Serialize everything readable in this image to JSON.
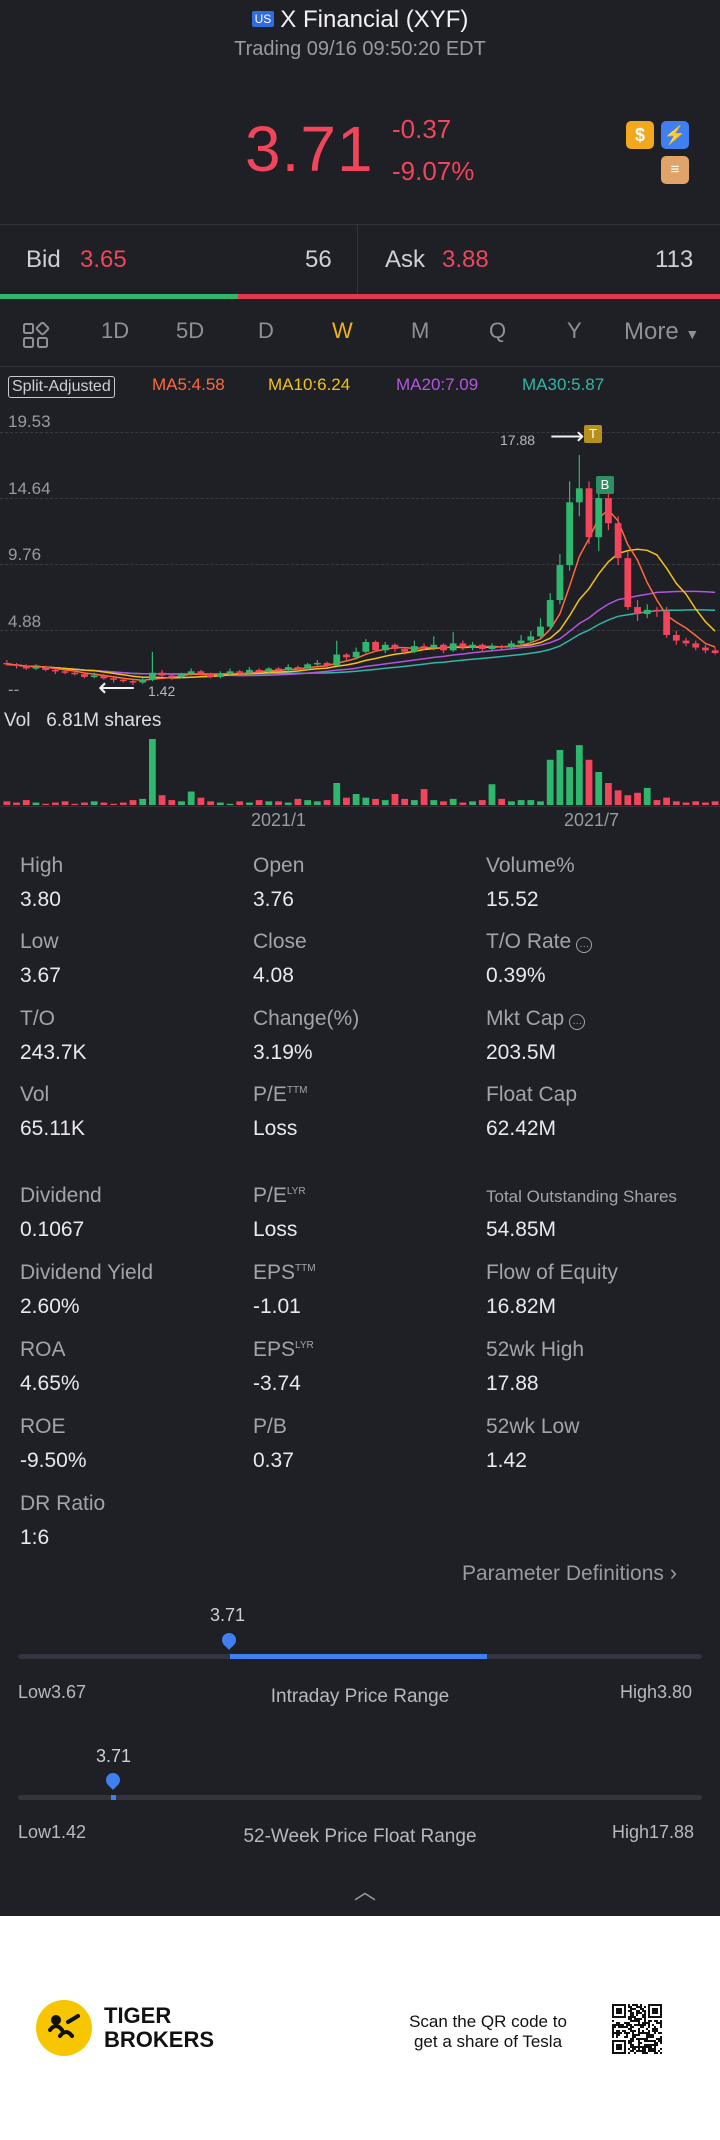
{
  "header": {
    "flag": "US",
    "title": "X Financial (XYF)",
    "subtitle": "Trading 09/16 09:50:20 EDT",
    "price": "3.71",
    "change": "-0.37",
    "change_pct": "-9.07%"
  },
  "bid_ask": {
    "bid_label": "Bid",
    "bid_price": "3.65",
    "bid_size": "56",
    "ask_label": "Ask",
    "ask_price": "3.88",
    "ask_size": "113"
  },
  "tabs": [
    "1D",
    "5D",
    "D",
    "W",
    "M",
    "Q",
    "Y",
    "More"
  ],
  "active_tab": "W",
  "chart_labels": {
    "split": "Split-Adjusted",
    "ma5": "MA5:4.58",
    "ma10": "MA10:6.24",
    "ma20": "MA20:7.09",
    "ma30": "MA30:5.87",
    "y_ticks": [
      "19.53",
      "14.64",
      "9.76",
      "4.88",
      "--"
    ],
    "high_marker": "17.88",
    "low_marker": "1.42",
    "badge_t": "T",
    "badge_b": "B",
    "vol_label": "Vol",
    "vol_value": "6.81M shares",
    "x_ticks": [
      "2021/1",
      "2021/7"
    ]
  },
  "colors": {
    "up": "#2fb86d",
    "down": "#f0455a",
    "ma5": "#ff6a3d",
    "ma10": "#f2c318",
    "ma20": "#b455e0",
    "ma30": "#2fb8a8",
    "accent": "#3f7ff0"
  },
  "stats": [
    {
      "label": "High",
      "value": "3.80"
    },
    {
      "label": "Open",
      "value": "3.76"
    },
    {
      "label": "Volume%",
      "value": "15.52"
    },
    {
      "label": "Low",
      "value": "3.67"
    },
    {
      "label": "Close",
      "value": "4.08"
    },
    {
      "label": "T/O Rate",
      "value": "0.39%"
    },
    {
      "label": "T/O",
      "value": "243.7K"
    },
    {
      "label": "Change(%)",
      "value": "3.19%"
    },
    {
      "label": "Mkt Cap",
      "value": "203.5M"
    },
    {
      "label": "Vol",
      "value": "65.11K"
    },
    {
      "label": "P/E",
      "sup": "TTM",
      "value": "Loss"
    },
    {
      "label": "Float Cap",
      "value": "62.42M"
    },
    {
      "label": "Dividend",
      "value": "0.1067"
    },
    {
      "label": "P/E",
      "sup": "LYR",
      "value": "Loss"
    },
    {
      "label": "Total Outstanding Shares",
      "value": "54.85M"
    },
    {
      "label": "Dividend Yield",
      "value": "2.60%"
    },
    {
      "label": "EPS",
      "sup": "TTM",
      "value": "-1.01"
    },
    {
      "label": "Flow of Equity",
      "value": "16.82M"
    },
    {
      "label": "ROA",
      "value": "4.65%"
    },
    {
      "label": "EPS",
      "sup": "LYR",
      "value": "-3.74"
    },
    {
      "label": "52wk High",
      "value": "17.88"
    },
    {
      "label": "ROE",
      "value": "-9.50%"
    },
    {
      "label": "P/B",
      "value": "0.37"
    },
    {
      "label": "52wk Low",
      "value": "1.42"
    },
    {
      "label": "DR Ratio",
      "value": "1:6"
    }
  ],
  "param_link": "Parameter Definitions",
  "intraday_range": {
    "current": "3.71",
    "low_label": "Low3.67",
    "high_label": "High3.80",
    "title": "Intraday Price Range",
    "fill_start": 0.31,
    "fill_end": 0.685
  },
  "week52_range": {
    "current": "3.71",
    "low_label": "Low1.42",
    "high_label": "High17.88",
    "title": "52-Week Price Float Range",
    "marker_pos": 0.139
  },
  "footer": {
    "brand_line1": "TIGER",
    "brand_line2": "BROKERS",
    "qr_line1": "Scan the QR code to",
    "qr_line2": "get a share of Tesla"
  },
  "chart_data": {
    "type": "candlestick",
    "ylim": [
      1.42,
      19.53
    ],
    "y_ticks": [
      19.53,
      14.64,
      9.76,
      4.88
    ],
    "x_ticks": [
      "2021/1",
      "2021/7"
    ],
    "high": 17.88,
    "low": 1.42,
    "candles": [
      [
        3.0,
        2.9,
        3.2,
        2.8
      ],
      [
        2.9,
        2.8,
        3.0,
        2.6
      ],
      [
        2.8,
        2.6,
        2.9,
        2.5
      ],
      [
        2.6,
        2.7,
        2.9,
        2.5
      ],
      [
        2.7,
        2.5,
        2.8,
        2.4
      ],
      [
        2.5,
        2.4,
        2.6,
        2.2
      ],
      [
        2.4,
        2.3,
        2.5,
        2.2
      ],
      [
        2.3,
        2.2,
        2.4,
        2.1
      ],
      [
        2.2,
        2.0,
        2.3,
        1.9
      ],
      [
        2.0,
        2.1,
        2.3,
        1.9
      ],
      [
        2.1,
        1.9,
        2.2,
        1.8
      ],
      [
        1.9,
        1.8,
        2.0,
        1.6
      ],
      [
        1.8,
        1.7,
        1.9,
        1.6
      ],
      [
        1.7,
        1.6,
        1.8,
        1.42
      ],
      [
        1.6,
        1.8,
        1.9,
        1.5
      ],
      [
        1.8,
        2.3,
        3.8,
        1.7
      ],
      [
        2.3,
        2.1,
        2.5,
        2.0
      ],
      [
        2.1,
        2.0,
        2.2,
        1.8
      ],
      [
        2.0,
        2.2,
        2.3,
        1.9
      ],
      [
        2.2,
        2.4,
        2.6,
        2.1
      ],
      [
        2.4,
        2.2,
        2.5,
        2.1
      ],
      [
        2.2,
        2.0,
        2.3,
        1.9
      ],
      [
        2.0,
        2.2,
        2.4,
        1.9
      ],
      [
        2.2,
        2.4,
        2.6,
        2.1
      ],
      [
        2.4,
        2.3,
        2.5,
        2.2
      ],
      [
        2.3,
        2.5,
        2.7,
        2.2
      ],
      [
        2.5,
        2.4,
        2.6,
        2.3
      ],
      [
        2.4,
        2.6,
        2.7,
        2.3
      ],
      [
        2.6,
        2.5,
        2.7,
        2.4
      ],
      [
        2.5,
        2.7,
        2.9,
        2.4
      ],
      [
        2.7,
        2.6,
        2.8,
        2.5
      ],
      [
        2.6,
        2.9,
        3.0,
        2.5
      ],
      [
        2.9,
        3.0,
        3.2,
        2.8
      ],
      [
        3.0,
        2.8,
        3.1,
        2.7
      ],
      [
        2.8,
        3.6,
        4.6,
        2.8
      ],
      [
        3.6,
        3.4,
        3.7,
        3.2
      ],
      [
        3.4,
        3.8,
        4.1,
        3.3
      ],
      [
        3.8,
        4.5,
        4.7,
        3.7
      ],
      [
        4.5,
        3.9,
        4.6,
        3.8
      ],
      [
        3.9,
        4.3,
        4.5,
        3.7
      ],
      [
        4.3,
        4.0,
        4.4,
        3.8
      ],
      [
        4.0,
        3.8,
        4.1,
        3.6
      ],
      [
        3.8,
        4.2,
        4.6,
        3.7
      ],
      [
        4.2,
        4.1,
        4.4,
        3.9
      ],
      [
        4.1,
        4.3,
        4.9,
        3.9
      ],
      [
        4.3,
        3.9,
        4.4,
        3.7
      ],
      [
        3.9,
        4.4,
        5.2,
        3.8
      ],
      [
        4.4,
        4.1,
        4.6,
        3.9
      ],
      [
        4.1,
        4.3,
        4.5,
        3.9
      ],
      [
        4.3,
        4.0,
        4.4,
        3.8
      ],
      [
        4.0,
        4.2,
        4.4,
        3.9
      ],
      [
        4.2,
        4.1,
        4.3,
        3.9
      ],
      [
        4.1,
        4.4,
        4.6,
        4.0
      ],
      [
        4.4,
        4.6,
        5.0,
        4.3
      ],
      [
        4.6,
        4.9,
        5.3,
        4.4
      ],
      [
        4.9,
        5.6,
        6.2,
        4.8
      ],
      [
        5.6,
        7.5,
        8.0,
        5.4
      ],
      [
        7.5,
        10.0,
        10.8,
        7.2
      ],
      [
        10.0,
        14.5,
        16.0,
        9.6
      ],
      [
        14.5,
        15.5,
        17.88,
        13.5
      ],
      [
        15.5,
        12.0,
        16.0,
        11.5
      ],
      [
        12.0,
        14.8,
        15.2,
        11.0
      ],
      [
        14.8,
        13.0,
        15.5,
        12.5
      ],
      [
        13.0,
        10.5,
        13.5,
        10.0
      ],
      [
        10.5,
        7.0,
        11.0,
        6.8
      ],
      [
        7.0,
        6.5,
        7.5,
        6.0
      ],
      [
        6.5,
        6.8,
        7.2,
        6.2
      ],
      [
        6.8,
        6.7,
        7.0,
        6.3
      ],
      [
        6.7,
        5.0,
        7.0,
        4.8
      ],
      [
        5.0,
        4.6,
        5.3,
        4.3
      ],
      [
        4.6,
        4.4,
        4.8,
        4.2
      ],
      [
        4.4,
        4.1,
        4.6,
        3.9
      ],
      [
        4.1,
        3.9,
        4.3,
        3.7
      ],
      [
        3.9,
        3.71,
        4.1,
        3.6
      ]
    ],
    "volumes": [
      0.3,
      0.2,
      0.4,
      0.2,
      0.1,
      0.2,
      0.3,
      0.1,
      0.2,
      0.3,
      0.2,
      0.1,
      0.2,
      0.4,
      0.5,
      5.4,
      0.8,
      0.4,
      0.3,
      1.1,
      0.6,
      0.3,
      0.2,
      0.1,
      0.3,
      0.2,
      0.4,
      0.3,
      0.3,
      0.2,
      0.5,
      0.4,
      0.3,
      0.4,
      1.8,
      0.6,
      0.9,
      0.6,
      0.5,
      0.4,
      0.9,
      0.5,
      0.4,
      1.3,
      0.4,
      0.3,
      0.5,
      0.2,
      0.3,
      0.4,
      1.7,
      0.5,
      0.3,
      0.4,
      0.4,
      0.3,
      3.7,
      4.5,
      3.1,
      4.9,
      3.7,
      2.7,
      1.8,
      1.2,
      0.8,
      1.0,
      1.4,
      0.4,
      0.6,
      0.3,
      0.2,
      0.3,
      0.2,
      0.3
    ]
  }
}
